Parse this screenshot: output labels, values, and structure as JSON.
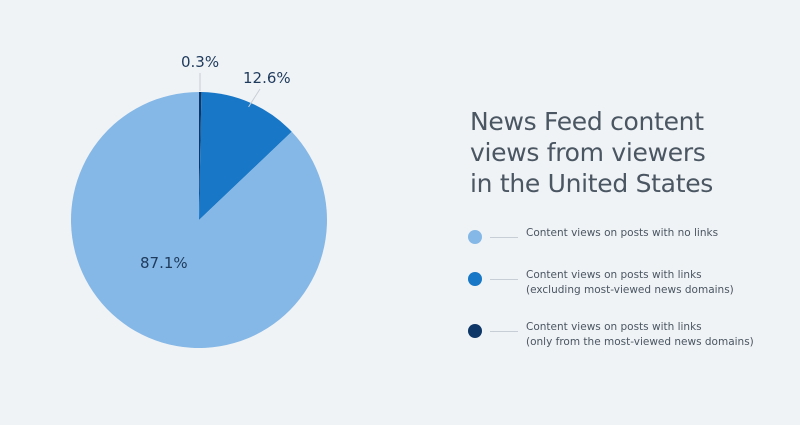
{
  "chart_data": {
    "type": "pie",
    "title": "News Feed content views from viewers in the United States",
    "title_lines": [
      "News Feed content",
      "views from viewers",
      "in the United States"
    ],
    "slices": [
      {
        "label_lines": [
          "Content views on posts with no links"
        ],
        "value": 87.1,
        "value_label": "87.1%",
        "color": "#85b8e6"
      },
      {
        "label_lines": [
          "Content views on posts with links",
          "(excluding most-viewed news domains)"
        ],
        "value": 12.6,
        "value_label": "12.6%",
        "color": "#1877c6"
      },
      {
        "label_lines": [
          "Content views on posts with links",
          "(only from the most-viewed news domains)"
        ],
        "value": 0.3,
        "value_label": "0.3%",
        "color": "#0e3666"
      }
    ],
    "start_angle_deg": 0,
    "direction": "clockwise",
    "legend_position": "right"
  }
}
